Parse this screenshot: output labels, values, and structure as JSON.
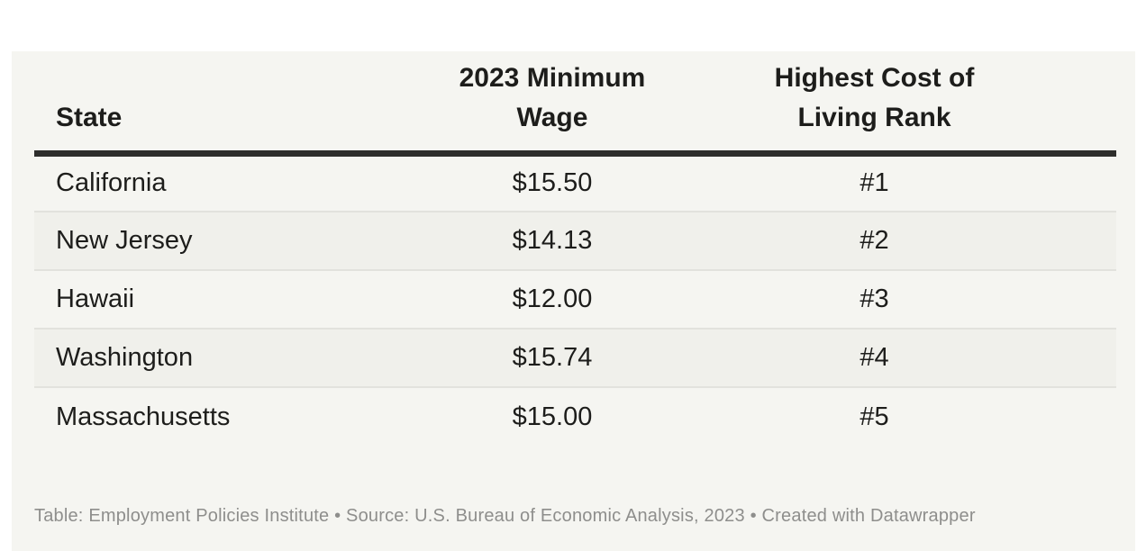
{
  "chart_data": {
    "type": "table",
    "columns": [
      "State",
      "2023 Minimum Wage",
      "Highest Cost of Living Rank"
    ],
    "rows": [
      [
        "California",
        "$15.50",
        "#1"
      ],
      [
        "New Jersey",
        "$14.13",
        "#2"
      ],
      [
        "Hawaii",
        "$12.00",
        "#3"
      ],
      [
        "Washington",
        "$15.74",
        "#4"
      ],
      [
        "Massachusetts",
        "$15.00",
        "#5"
      ]
    ],
    "title": "",
    "layout_hints": {
      "column_alignment": [
        "left",
        "center",
        "center"
      ],
      "striped_rows": true,
      "header_rule": true
    }
  },
  "display": {
    "headers": [
      "State",
      "2023 Minimum\nWage",
      "Highest Cost of\nLiving Rank"
    ],
    "footer": "Table: Employment Policies Institute • Source: U.S. Bureau of Economic Analysis, 2023 • Created with Datawrapper"
  },
  "colors": {
    "page_bg": "#ffffff",
    "card_bg": "#f5f5f1",
    "stripe_bg": "#f0f0eb",
    "row_separator": "#e2e2dd",
    "header_rule": "#2e2e2c",
    "text": "#1d1d1b",
    "footer_text": "#8e8e8c"
  }
}
